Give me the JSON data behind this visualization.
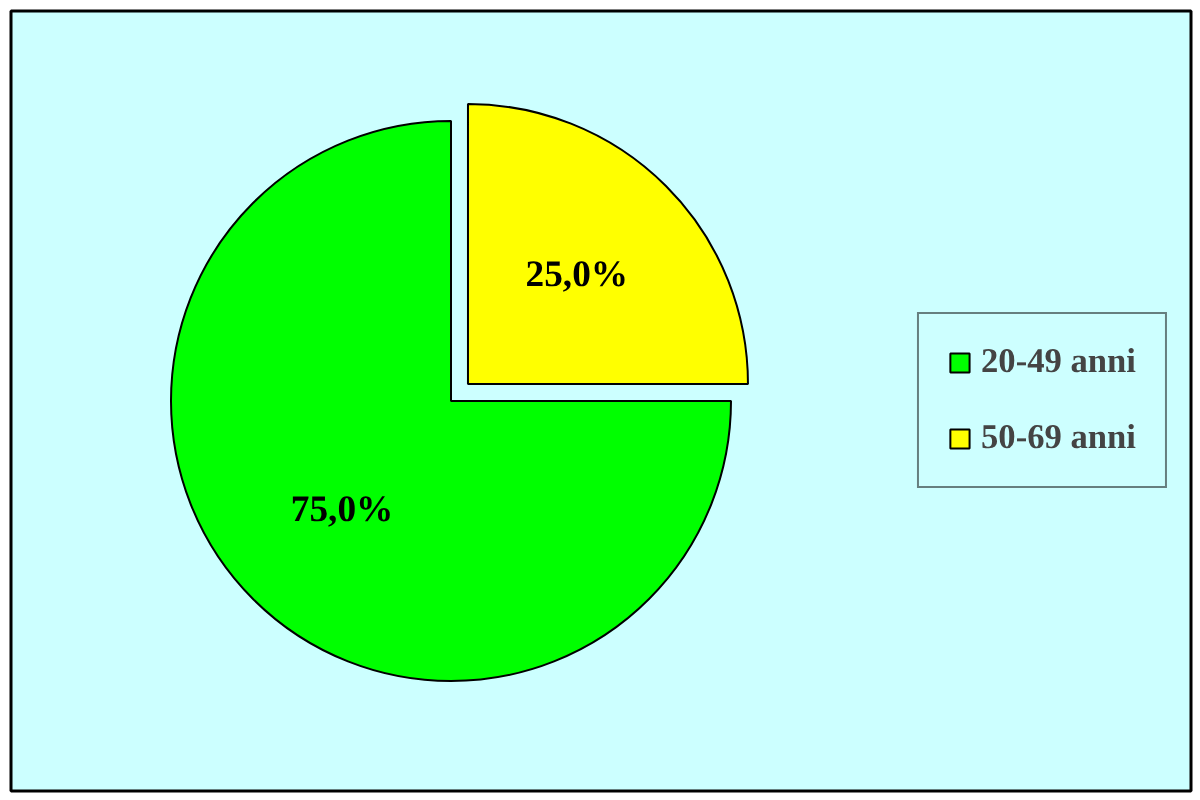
{
  "chart_data": {
    "type": "pie",
    "categories": [
      "20-49 anni",
      "50-69 anni"
    ],
    "values": [
      75,
      25
    ],
    "colors": [
      "#00ff00",
      "#ffff00"
    ],
    "value_labels": [
      "75,0%",
      "25,0%"
    ],
    "legend": "right"
  }
}
